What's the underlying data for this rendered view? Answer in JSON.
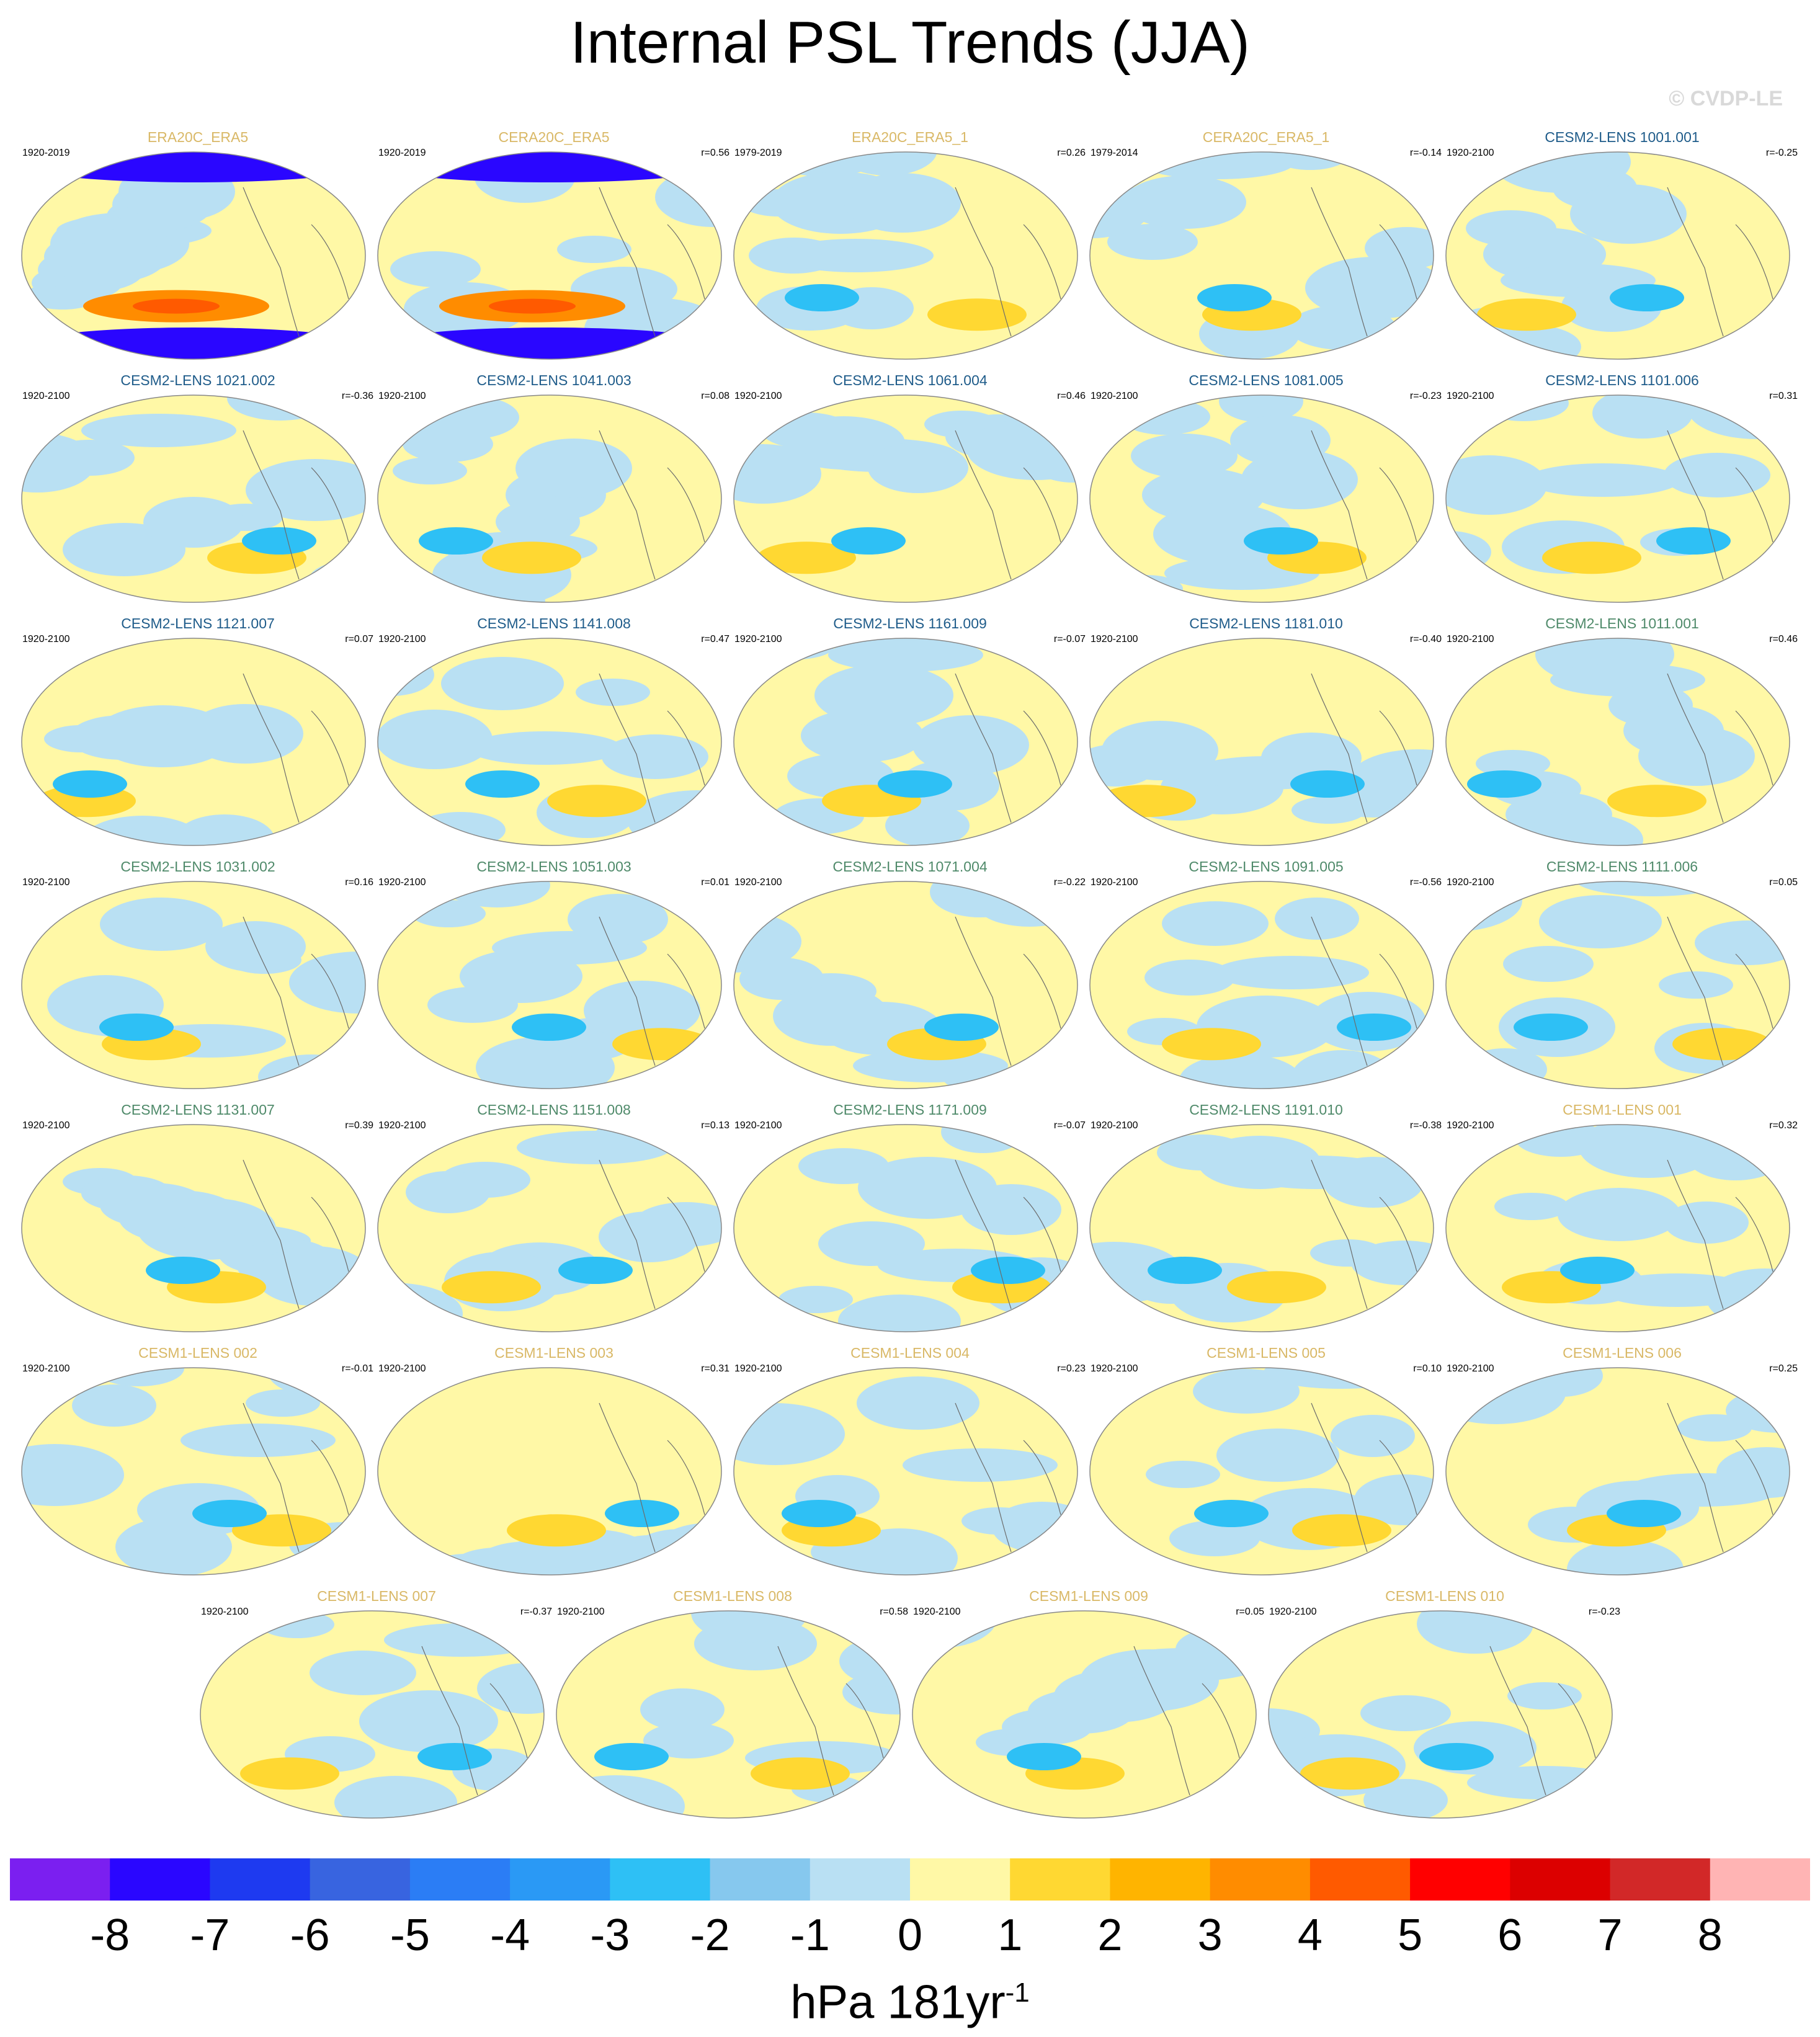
{
  "title": "Internal PSL Trends (JJA)",
  "watermark": "© CVDP-LE",
  "colors": {
    "obs_label": "#d9b866",
    "cesm2_a_label": "#1f5c8a",
    "cesm2_b_label": "#4f8a6a",
    "cesm1_label": "#d9b866",
    "coastline": "#6b6b6b"
  },
  "panels": [
    {
      "label": "ERA20C_ERA5",
      "period": "1920-2019",
      "r": "",
      "group": "obs"
    },
    {
      "label": "CERA20C_ERA5",
      "period": "1920-2019",
      "r": "r=0.56",
      "group": "obs"
    },
    {
      "label": "ERA20C_ERA5_1",
      "period": "1979-2019",
      "r": "r=0.26",
      "group": "obs"
    },
    {
      "label": "CERA20C_ERA5_1",
      "period": "1979-2014",
      "r": "r=-0.14",
      "group": "obs"
    },
    {
      "label": "CESM2-LENS 1001.001",
      "period": "1920-2100",
      "r": "r=-0.25",
      "group": "cesm2_a"
    },
    {
      "label": "CESM2-LENS 1021.002",
      "period": "1920-2100",
      "r": "r=-0.36",
      "group": "cesm2_a"
    },
    {
      "label": "CESM2-LENS 1041.003",
      "period": "1920-2100",
      "r": "r=0.08",
      "group": "cesm2_a"
    },
    {
      "label": "CESM2-LENS 1061.004",
      "period": "1920-2100",
      "r": "r=0.46",
      "group": "cesm2_a"
    },
    {
      "label": "CESM2-LENS 1081.005",
      "period": "1920-2100",
      "r": "r=-0.23",
      "group": "cesm2_a"
    },
    {
      "label": "CESM2-LENS 1101.006",
      "period": "1920-2100",
      "r": "r=0.31",
      "group": "cesm2_a"
    },
    {
      "label": "CESM2-LENS 1121.007",
      "period": "1920-2100",
      "r": "r=0.07",
      "group": "cesm2_a"
    },
    {
      "label": "CESM2-LENS 1141.008",
      "period": "1920-2100",
      "r": "r=0.47",
      "group": "cesm2_a"
    },
    {
      "label": "CESM2-LENS 1161.009",
      "period": "1920-2100",
      "r": "r=-0.07",
      "group": "cesm2_a"
    },
    {
      "label": "CESM2-LENS 1181.010",
      "period": "1920-2100",
      "r": "r=-0.40",
      "group": "cesm2_a"
    },
    {
      "label": "CESM2-LENS 1011.001",
      "period": "1920-2100",
      "r": "r=0.46",
      "group": "cesm2_b"
    },
    {
      "label": "CESM2-LENS 1031.002",
      "period": "1920-2100",
      "r": "r=0.16",
      "group": "cesm2_b"
    },
    {
      "label": "CESM2-LENS 1051.003",
      "period": "1920-2100",
      "r": "r=0.01",
      "group": "cesm2_b"
    },
    {
      "label": "CESM2-LENS 1071.004",
      "period": "1920-2100",
      "r": "r=-0.22",
      "group": "cesm2_b"
    },
    {
      "label": "CESM2-LENS 1091.005",
      "period": "1920-2100",
      "r": "r=-0.56",
      "group": "cesm2_b"
    },
    {
      "label": "CESM2-LENS 1111.006",
      "period": "1920-2100",
      "r": "r=0.05",
      "group": "cesm2_b"
    },
    {
      "label": "CESM2-LENS 1131.007",
      "period": "1920-2100",
      "r": "r=0.39",
      "group": "cesm2_b"
    },
    {
      "label": "CESM2-LENS 1151.008",
      "period": "1920-2100",
      "r": "r=0.13",
      "group": "cesm2_b"
    },
    {
      "label": "CESM2-LENS 1171.009",
      "period": "1920-2100",
      "r": "r=-0.07",
      "group": "cesm2_b"
    },
    {
      "label": "CESM2-LENS 1191.010",
      "period": "1920-2100",
      "r": "r=-0.38",
      "group": "cesm2_b"
    },
    {
      "label": "CESM1-LENS 001",
      "period": "1920-2100",
      "r": "r=0.32",
      "group": "cesm1"
    },
    {
      "label": "CESM1-LENS 002",
      "period": "1920-2100",
      "r": "r=-0.01",
      "group": "cesm1"
    },
    {
      "label": "CESM1-LENS 003",
      "period": "1920-2100",
      "r": "r=0.31",
      "group": "cesm1"
    },
    {
      "label": "CESM1-LENS 004",
      "period": "1920-2100",
      "r": "r=0.23",
      "group": "cesm1"
    },
    {
      "label": "CESM1-LENS 005",
      "period": "1920-2100",
      "r": "r=0.10",
      "group": "cesm1"
    },
    {
      "label": "CESM1-LENS 006",
      "period": "1920-2100",
      "r": "r=0.25",
      "group": "cesm1"
    },
    {
      "label": "CESM1-LENS 007",
      "period": "1920-2100",
      "r": "r=-0.37",
      "group": "cesm1"
    },
    {
      "label": "CESM1-LENS 008",
      "period": "1920-2100",
      "r": "r=0.58",
      "group": "cesm1"
    },
    {
      "label": "CESM1-LENS 009",
      "period": "1920-2100",
      "r": "r=0.05",
      "group": "cesm1"
    },
    {
      "label": "CESM1-LENS 010",
      "period": "1920-2100",
      "r": "r=-0.23",
      "group": "cesm1"
    }
  ],
  "colorbar": {
    "colors": [
      "#7b1ff0",
      "#2a06ff",
      "#1e3af0",
      "#3864e0",
      "#2b7df5",
      "#2a99f5",
      "#2ec0f5",
      "#86c8ee",
      "#b9e0f3",
      "#fff8a6",
      "#ffd832",
      "#ffb400",
      "#ff8c00",
      "#ff5a00",
      "#ff0000",
      "#dc0000",
      "#d22828",
      "#ffb4b4"
    ],
    "ticks": [
      "-8",
      "-7",
      "-6",
      "-5",
      "-4",
      "-3",
      "-2",
      "-1",
      "0",
      "1",
      "2",
      "3",
      "4",
      "5",
      "6",
      "7",
      "8"
    ],
    "units": "hPa 181yr",
    "units_sup": "-1"
  }
}
